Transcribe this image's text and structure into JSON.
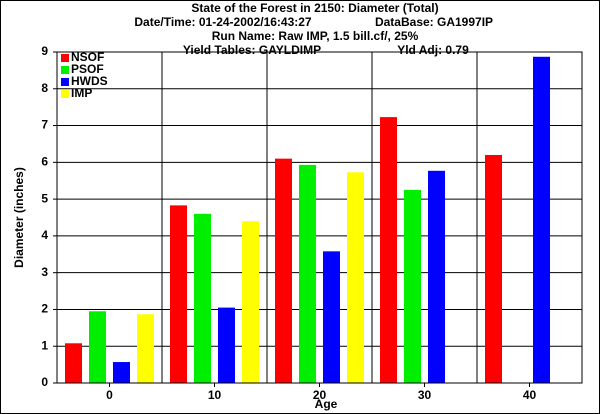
{
  "chart_data": {
    "type": "bar",
    "title": "State of the Forest in 2150: Diameter (Total)",
    "subtitle_lines": [
      [
        "Date/Time: 01-24-2002/16:43:27",
        "DataBase: GA1997IP"
      ],
      [
        "Run Name: Raw IMP, 1.5 bill.cf/, 25%"
      ],
      [
        "Yield Tables: GAYLDIMP",
        "Yld Adj: 0.79"
      ]
    ],
    "x_label": "Age",
    "y_label": "Diameter (inches)",
    "categories": [
      "0",
      "10",
      "20",
      "30",
      "40"
    ],
    "series": [
      {
        "name": "NSOF",
        "color": "#ff0000",
        "values": [
          1.08,
          4.83,
          6.1,
          7.23,
          6.2
        ]
      },
      {
        "name": "PSOF",
        "color": "#00ee00",
        "values": [
          1.95,
          4.6,
          5.93,
          5.25,
          null
        ]
      },
      {
        "name": "HWDS",
        "color": "#0000ff",
        "values": [
          0.57,
          2.05,
          3.58,
          5.77,
          8.87
        ]
      },
      {
        "name": "IMP",
        "color": "#ffff00",
        "values": [
          1.87,
          4.4,
          5.73,
          null,
          null
        ]
      }
    ],
    "ylim": [
      0,
      9
    ],
    "yticks": [
      0,
      1,
      2,
      3,
      4,
      5,
      6,
      7,
      8,
      9
    ],
    "grid": true,
    "legend": "top-left"
  }
}
